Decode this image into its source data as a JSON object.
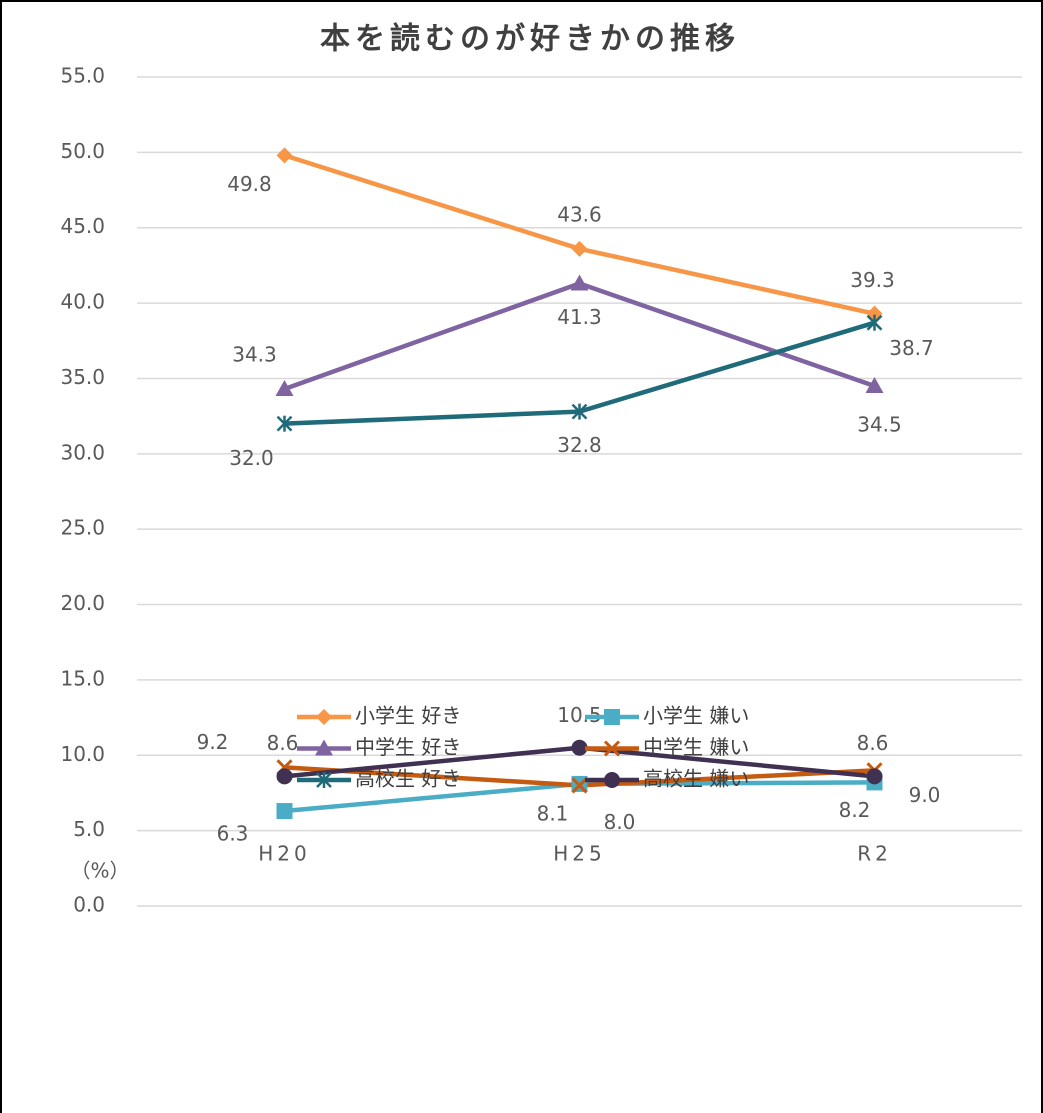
{
  "chart_data": {
    "type": "line",
    "title": "本を読むのが好きかの推移",
    "y_unit_label": "（%）",
    "categories": [
      "H20",
      "H25",
      "R2"
    ],
    "ylim": [
      0,
      55
    ],
    "yticks": [
      {
        "value": 0,
        "label": "0.0"
      },
      {
        "value": 5,
        "label": "5.0"
      },
      {
        "value": 10,
        "label": "10.0"
      },
      {
        "value": 15,
        "label": "15.0"
      },
      {
        "value": 20,
        "label": "20.0"
      },
      {
        "value": 25,
        "label": "25.0"
      },
      {
        "value": 30,
        "label": "30.0"
      },
      {
        "value": 35,
        "label": "35.0"
      },
      {
        "value": 40,
        "label": "40.0"
      },
      {
        "value": 45,
        "label": "45.0"
      },
      {
        "value": 50,
        "label": "50.0"
      },
      {
        "value": 55,
        "label": "55.0"
      }
    ],
    "grid": true,
    "series": [
      {
        "name": "小学生 好き",
        "color": "#f79646",
        "marker": "diamond",
        "values": [
          49.8,
          43.6,
          39.3
        ],
        "value_labels": [
          "49.8",
          "43.6",
          "39.3"
        ]
      },
      {
        "name": "小学生 嫌い",
        "color": "#4bacc6",
        "marker": "square",
        "values": [
          6.3,
          8.1,
          8.2
        ],
        "value_labels": [
          "6.3",
          "8.1",
          "8.2"
        ]
      },
      {
        "name": "中学生 好き",
        "color": "#8064a2",
        "marker": "triangle",
        "values": [
          34.3,
          41.3,
          34.5
        ],
        "value_labels": [
          "34.3",
          "41.3",
          "34.5"
        ]
      },
      {
        "name": "中学生 嫌い",
        "color": "#c55a11",
        "marker": "x",
        "values": [
          9.2,
          8.0,
          9.0
        ],
        "value_labels": [
          "9.2",
          "8.0",
          "9.0"
        ]
      },
      {
        "name": "高校生 好き",
        "color": "#1f6b7a",
        "marker": "star",
        "values": [
          32.0,
          32.8,
          38.7
        ],
        "value_labels": [
          "32.0",
          "32.8",
          "38.7"
        ]
      },
      {
        "name": "高校生 嫌い",
        "color": "#403152",
        "marker": "circle",
        "values": [
          8.6,
          10.5,
          8.6
        ],
        "value_labels": [
          "8.6",
          "10.5",
          "8.6"
        ]
      }
    ]
  }
}
